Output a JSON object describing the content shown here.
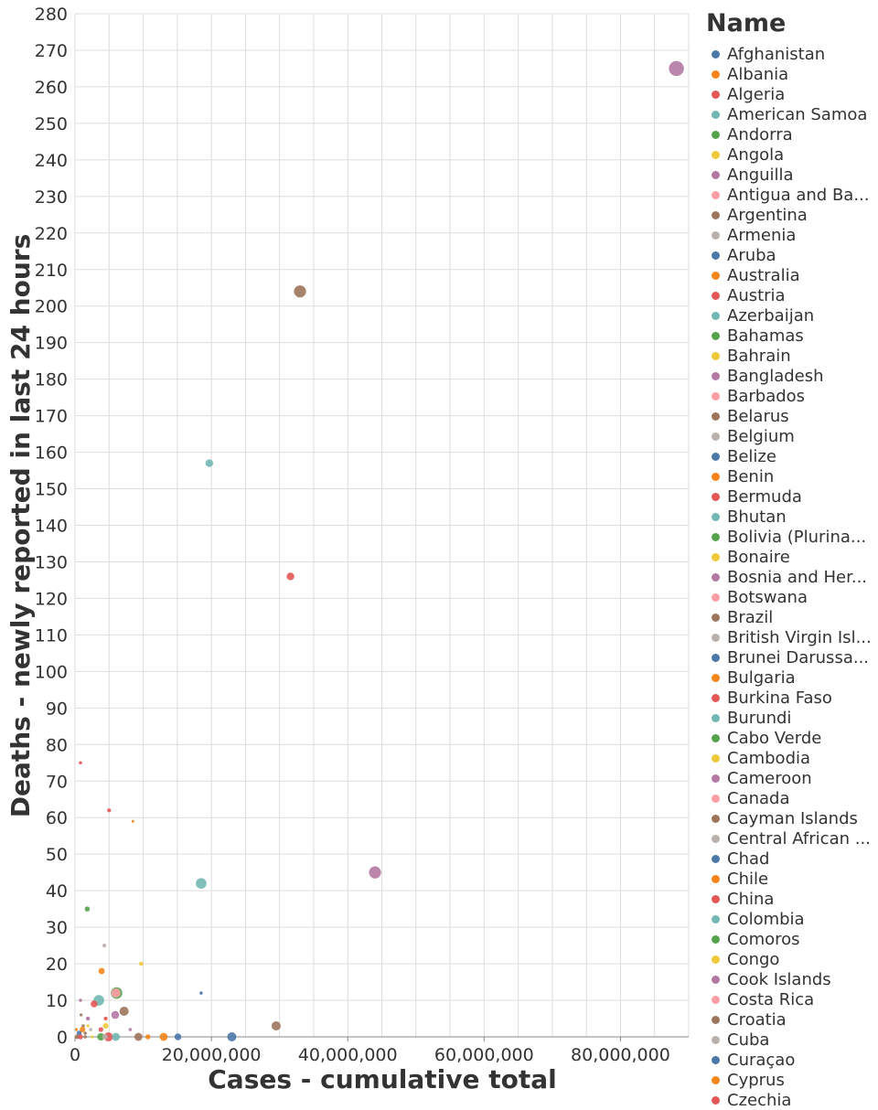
{
  "chart_data": {
    "type": "scatter",
    "xlabel": "Cases - cumulative total",
    "ylabel": "Deaths - newly reported in last 24 hours",
    "xlim": [
      0,
      90000000
    ],
    "ylim": [
      0,
      280
    ],
    "x_ticks": [
      0,
      20000000,
      40000000,
      60000000,
      80000000
    ],
    "x_tick_labels": [
      "0",
      "20,000,000",
      "40,000,000",
      "60,000,000",
      "80,000,000"
    ],
    "y_ticks": [
      0,
      10,
      20,
      30,
      40,
      50,
      60,
      70,
      80,
      90,
      100,
      110,
      120,
      130,
      140,
      150,
      160,
      170,
      180,
      190,
      200,
      210,
      220,
      230,
      240,
      250,
      260,
      270,
      280
    ],
    "grid": true,
    "legend": {
      "title": "Name",
      "placement": "right",
      "items": [
        {
          "label": "Afghanistan",
          "color": "#4c78a8"
        },
        {
          "label": "Albania",
          "color": "#f58518"
        },
        {
          "label": "Algeria",
          "color": "#e45756"
        },
        {
          "label": "American Samoa",
          "color": "#72b7b2"
        },
        {
          "label": "Andorra",
          "color": "#54a24b"
        },
        {
          "label": "Angola",
          "color": "#eeca3b"
        },
        {
          "label": "Anguilla",
          "color": "#b279a2"
        },
        {
          "label": "Antigua and Ba...",
          "color": "#ff9da6"
        },
        {
          "label": "Argentina",
          "color": "#9d755d"
        },
        {
          "label": "Armenia",
          "color": "#bab0ac"
        },
        {
          "label": "Aruba",
          "color": "#4c78a8"
        },
        {
          "label": "Australia",
          "color": "#f58518"
        },
        {
          "label": "Austria",
          "color": "#e45756"
        },
        {
          "label": "Azerbaijan",
          "color": "#72b7b2"
        },
        {
          "label": "Bahamas",
          "color": "#54a24b"
        },
        {
          "label": "Bahrain",
          "color": "#eeca3b"
        },
        {
          "label": "Bangladesh",
          "color": "#b279a2"
        },
        {
          "label": "Barbados",
          "color": "#ff9da6"
        },
        {
          "label": "Belarus",
          "color": "#9d755d"
        },
        {
          "label": "Belgium",
          "color": "#bab0ac"
        },
        {
          "label": "Belize",
          "color": "#4c78a8"
        },
        {
          "label": "Benin",
          "color": "#f58518"
        },
        {
          "label": "Bermuda",
          "color": "#e45756"
        },
        {
          "label": "Bhutan",
          "color": "#72b7b2"
        },
        {
          "label": "Bolivia (Plurina...",
          "color": "#54a24b"
        },
        {
          "label": "Bonaire",
          "color": "#eeca3b"
        },
        {
          "label": "Bosnia and Her...",
          "color": "#b279a2"
        },
        {
          "label": "Botswana",
          "color": "#ff9da6"
        },
        {
          "label": "Brazil",
          "color": "#9d755d"
        },
        {
          "label": "British Virgin Isl...",
          "color": "#bab0ac"
        },
        {
          "label": "Brunei Darussa...",
          "color": "#4c78a8"
        },
        {
          "label": "Bulgaria",
          "color": "#f58518"
        },
        {
          "label": "Burkina Faso",
          "color": "#e45756"
        },
        {
          "label": "Burundi",
          "color": "#72b7b2"
        },
        {
          "label": "Cabo Verde",
          "color": "#54a24b"
        },
        {
          "label": "Cambodia",
          "color": "#eeca3b"
        },
        {
          "label": "Cameroon",
          "color": "#b279a2"
        },
        {
          "label": "Canada",
          "color": "#ff9da6"
        },
        {
          "label": "Cayman Islands",
          "color": "#9d755d"
        },
        {
          "label": "Central African ...",
          "color": "#bab0ac"
        },
        {
          "label": "Chad",
          "color": "#4c78a8"
        },
        {
          "label": "Chile",
          "color": "#f58518"
        },
        {
          "label": "China",
          "color": "#e45756"
        },
        {
          "label": "Colombia",
          "color": "#72b7b2"
        },
        {
          "label": "Comoros",
          "color": "#54a24b"
        },
        {
          "label": "Congo",
          "color": "#eeca3b"
        },
        {
          "label": "Cook Islands",
          "color": "#b279a2"
        },
        {
          "label": "Costa Rica",
          "color": "#ff9da6"
        },
        {
          "label": "Croatia",
          "color": "#9d755d"
        },
        {
          "label": "Cuba",
          "color": "#bab0ac"
        },
        {
          "label": "Curaçao",
          "color": "#4c78a8"
        },
        {
          "label": "Cyprus",
          "color": "#f58518"
        },
        {
          "label": "Czechia",
          "color": "#e45756"
        }
      ]
    },
    "points": [
      {
        "x": 88200000,
        "y": 265,
        "size": 5,
        "color": "#b279a2"
      },
      {
        "x": 33000000,
        "y": 204,
        "size": 4,
        "color": "#9d755d"
      },
      {
        "x": 19700000,
        "y": 157,
        "size": 2.5,
        "color": "#72b7b2"
      },
      {
        "x": 31600000,
        "y": 126,
        "size": 2.5,
        "color": "#e45756"
      },
      {
        "x": 44000000,
        "y": 45,
        "size": 4,
        "color": "#b279a2"
      },
      {
        "x": 18500000,
        "y": 42,
        "size": 3.5,
        "color": "#72b7b2"
      },
      {
        "x": 800000,
        "y": 75,
        "size": 1,
        "color": "#e45756"
      },
      {
        "x": 5000000,
        "y": 62,
        "size": 1.2,
        "color": "#e45756"
      },
      {
        "x": 8500000,
        "y": 59,
        "size": 0.8,
        "color": "#f58518"
      },
      {
        "x": 1800000,
        "y": 35,
        "size": 1.6,
        "color": "#54a24b"
      },
      {
        "x": 4300000,
        "y": 25,
        "size": 1.2,
        "color": "#bab0ac"
      },
      {
        "x": 9700000,
        "y": 20,
        "size": 1.3,
        "color": "#eeca3b"
      },
      {
        "x": 3900000,
        "y": 18,
        "size": 2,
        "color": "#f58518"
      },
      {
        "x": 6100000,
        "y": 12,
        "size": 3.8,
        "color": "#54a24b"
      },
      {
        "x": 6000000,
        "y": 12,
        "size": 3,
        "color": "#ff9da6"
      },
      {
        "x": 18500000,
        "y": 12,
        "size": 1,
        "color": "#4c78a8"
      },
      {
        "x": 3500000,
        "y": 10,
        "size": 3.5,
        "color": "#72b7b2"
      },
      {
        "x": 2800000,
        "y": 9,
        "size": 2.2,
        "color": "#e45756"
      },
      {
        "x": 800000,
        "y": 10,
        "size": 1,
        "color": "#b279a2"
      },
      {
        "x": 7200000,
        "y": 7,
        "size": 3,
        "color": "#9d755d"
      },
      {
        "x": 5900000,
        "y": 6,
        "size": 2.6,
        "color": "#b279a2"
      },
      {
        "x": 900000,
        "y": 6,
        "size": 0.9,
        "color": "#9d755d"
      },
      {
        "x": 4500000,
        "y": 5,
        "size": 1.2,
        "color": "#e45756"
      },
      {
        "x": 1900000,
        "y": 5,
        "size": 1.3,
        "color": "#b279a2"
      },
      {
        "x": 4500000,
        "y": 3,
        "size": 1.8,
        "color": "#eeca3b"
      },
      {
        "x": 29500000,
        "y": 3,
        "size": 3,
        "color": "#9d755d"
      },
      {
        "x": 1200000,
        "y": 3,
        "size": 1,
        "color": "#9d755d"
      },
      {
        "x": 1900000,
        "y": 3,
        "size": 0.9,
        "color": "#eeca3b"
      },
      {
        "x": 3800000,
        "y": 2,
        "size": 1.5,
        "color": "#e45756"
      },
      {
        "x": 8100000,
        "y": 2,
        "size": 1,
        "color": "#b279a2"
      },
      {
        "x": 1100000,
        "y": 2,
        "size": 1.8,
        "color": "#f58518"
      },
      {
        "x": 200000,
        "y": 2,
        "size": 0.9,
        "color": "#f58518"
      },
      {
        "x": 2300000,
        "y": 2,
        "size": 1,
        "color": "#bab0ac"
      },
      {
        "x": 600000,
        "y": 1,
        "size": 1.6,
        "color": "#4c78a8"
      },
      {
        "x": 1500000,
        "y": 1,
        "size": 1,
        "color": "#9d755d"
      },
      {
        "x": 4900000,
        "y": 0,
        "size": 3,
        "color": "#e45756"
      },
      {
        "x": 6000000,
        "y": 0,
        "size": 2.6,
        "color": "#72b7b2"
      },
      {
        "x": 3800000,
        "y": 0,
        "size": 2.4,
        "color": "#54a24b"
      },
      {
        "x": 4400000,
        "y": 0,
        "size": 1.8,
        "color": "#bab0ac"
      },
      {
        "x": 9300000,
        "y": 0,
        "size": 2.6,
        "color": "#9d755d"
      },
      {
        "x": 10700000,
        "y": 0,
        "size": 1.6,
        "color": "#f58518"
      },
      {
        "x": 13000000,
        "y": 0,
        "size": 2.6,
        "color": "#f58518"
      },
      {
        "x": 15100000,
        "y": 0,
        "size": 2.2,
        "color": "#4c78a8"
      },
      {
        "x": 23000000,
        "y": 0,
        "size": 3,
        "color": "#4c78a8"
      },
      {
        "x": 300000,
        "y": 0,
        "size": 1.4,
        "color": "#9d755d"
      },
      {
        "x": 800000,
        "y": 0,
        "size": 1.6,
        "color": "#e45756"
      },
      {
        "x": 1500000,
        "y": 0,
        "size": 1,
        "color": "#9d755d"
      },
      {
        "x": 2500000,
        "y": 0,
        "size": 0.9,
        "color": "#eeca3b"
      }
    ]
  }
}
